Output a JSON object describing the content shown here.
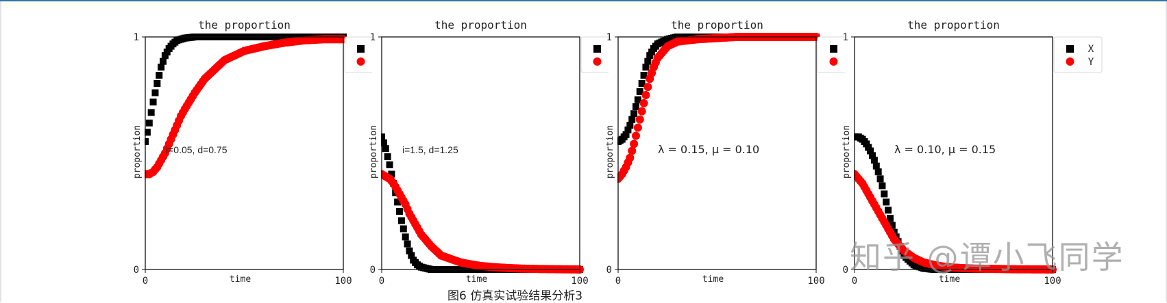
{
  "caption": "图6 仿真实试验结果分析3",
  "watermark": "知乎 @谭小飞同学",
  "colors": {
    "x_series": "#000000",
    "y_series": "#ff0000",
    "axis": "#000000",
    "frame_accent": "#2f74a8"
  },
  "legend": {
    "x_label": "X",
    "y_label": "Y"
  },
  "chart_data": [
    {
      "type": "scatter",
      "title": "the proportion",
      "xlabel": "time",
      "ylabel": "proportion",
      "annotation": "i=0.05, d=0.75",
      "xlim": [
        0,
        100
      ],
      "ylim": [
        0,
        1
      ],
      "xticks": [
        "0",
        "100"
      ],
      "yticks": [
        "0",
        "1"
      ],
      "grid": false,
      "legend_position": "outside right, labels hidden",
      "x": [
        0,
        2,
        4,
        6,
        8,
        10,
        12,
        14,
        16,
        18,
        20,
        25,
        30,
        40,
        50,
        60,
        70,
        80,
        90,
        100
      ],
      "series": [
        {
          "name": "X",
          "marker": "square",
          "values": [
            0.55,
            0.63,
            0.72,
            0.8,
            0.87,
            0.92,
            0.95,
            0.97,
            0.985,
            0.99,
            0.995,
            1.0,
            1.0,
            1.0,
            1.0,
            1.0,
            1.0,
            1.0,
            1.0,
            1.0
          ]
        },
        {
          "name": "Y",
          "marker": "circle",
          "values": [
            0.41,
            0.41,
            0.42,
            0.44,
            0.47,
            0.5,
            0.54,
            0.58,
            0.62,
            0.66,
            0.69,
            0.76,
            0.82,
            0.9,
            0.94,
            0.96,
            0.975,
            0.985,
            0.99,
            0.99
          ]
        }
      ]
    },
    {
      "type": "scatter",
      "title": "the proportion",
      "xlabel": "time",
      "ylabel": "proportion",
      "annotation": "i=1.5, d=1.25",
      "xlim": [
        0,
        100
      ],
      "ylim": [
        0,
        1
      ],
      "xticks": [
        "0",
        "100"
      ],
      "yticks": [
        "0",
        "1"
      ],
      "grid": false,
      "legend_position": "outside right, labels hidden",
      "x": [
        0,
        2,
        4,
        6,
        8,
        10,
        12,
        14,
        16,
        18,
        20,
        25,
        30,
        40,
        50,
        60,
        70,
        80,
        90,
        100
      ],
      "series": [
        {
          "name": "X",
          "marker": "square",
          "values": [
            0.57,
            0.52,
            0.45,
            0.37,
            0.29,
            0.21,
            0.14,
            0.08,
            0.04,
            0.02,
            0.01,
            0.0,
            0.0,
            0.0,
            0.0,
            0.0,
            0.0,
            0.0,
            0.0,
            0.0
          ]
        },
        {
          "name": "Y",
          "marker": "circle",
          "values": [
            0.41,
            0.4,
            0.39,
            0.37,
            0.34,
            0.31,
            0.28,
            0.24,
            0.21,
            0.18,
            0.15,
            0.1,
            0.06,
            0.03,
            0.015,
            0.008,
            0.004,
            0.002,
            0.001,
            0.0
          ]
        }
      ]
    },
    {
      "type": "scatter",
      "title": "the proportion",
      "xlabel": "time",
      "ylabel": "proportion",
      "annotation": "λ = 0.15, μ = 0.10",
      "xlim": [
        0,
        100
      ],
      "ylim": [
        0,
        1
      ],
      "xticks": [
        "0",
        "100"
      ],
      "yticks": [
        "0",
        "1"
      ],
      "grid": false,
      "legend_position": "outside right, labels hidden",
      "x": [
        0,
        2,
        4,
        6,
        8,
        10,
        12,
        14,
        16,
        18,
        20,
        25,
        30,
        40,
        50,
        60,
        70,
        80,
        90,
        100
      ],
      "series": [
        {
          "name": "X",
          "marker": "square",
          "values": [
            0.55,
            0.56,
            0.58,
            0.62,
            0.67,
            0.73,
            0.8,
            0.87,
            0.92,
            0.95,
            0.97,
            0.99,
            1.0,
            1.0,
            1.0,
            1.0,
            1.0,
            1.0,
            1.0,
            1.0
          ]
        },
        {
          "name": "Y",
          "marker": "circle",
          "values": [
            0.39,
            0.41,
            0.44,
            0.48,
            0.54,
            0.61,
            0.68,
            0.75,
            0.82,
            0.87,
            0.91,
            0.96,
            0.98,
            0.99,
            0.995,
            1.0,
            1.0,
            1.0,
            1.0,
            1.0
          ]
        }
      ]
    },
    {
      "type": "scatter",
      "title": "the proportion",
      "xlabel": "time",
      "ylabel": "proportion",
      "annotation": "λ = 0.10, μ = 0.15",
      "xlim": [
        0,
        100
      ],
      "ylim": [
        0,
        1
      ],
      "xticks": [
        "0",
        "100"
      ],
      "yticks": [
        "0",
        "1"
      ],
      "grid": false,
      "legend_position": "outside right",
      "legend_entries": [
        "X",
        "Y"
      ],
      "x": [
        0,
        2,
        4,
        6,
        8,
        10,
        12,
        14,
        16,
        18,
        20,
        25,
        30,
        35,
        40,
        45,
        50,
        60,
        80,
        100
      ],
      "series": [
        {
          "name": "X",
          "marker": "square",
          "values": [
            0.57,
            0.57,
            0.56,
            0.54,
            0.51,
            0.47,
            0.42,
            0.36,
            0.29,
            0.22,
            0.16,
            0.06,
            0.02,
            0.005,
            0.0,
            0.0,
            0.0,
            0.0,
            0.0,
            0.0
          ]
        },
        {
          "name": "Y",
          "marker": "circle",
          "values": [
            0.41,
            0.39,
            0.37,
            0.34,
            0.31,
            0.28,
            0.25,
            0.22,
            0.19,
            0.16,
            0.13,
            0.08,
            0.05,
            0.03,
            0.02,
            0.012,
            0.008,
            0.004,
            0.001,
            0.0
          ]
        }
      ]
    }
  ]
}
